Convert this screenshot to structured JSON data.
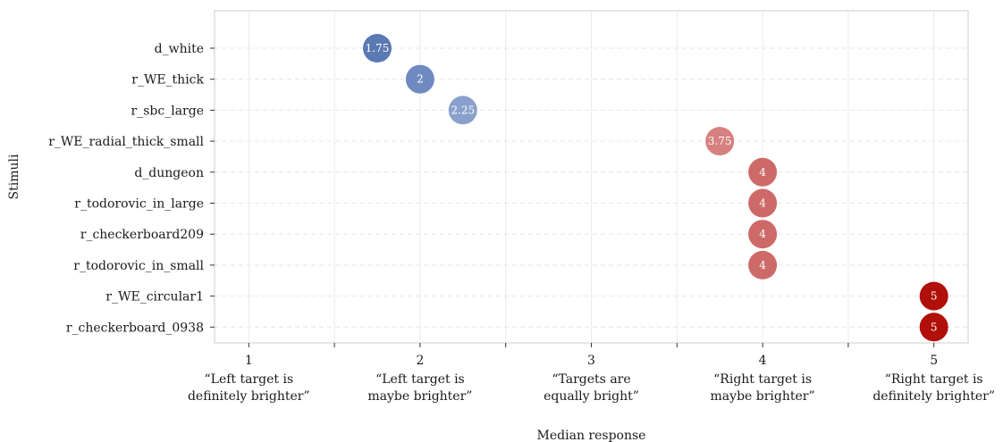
{
  "chart_data": {
    "type": "scatter",
    "xlabel": "Median response",
    "ylabel": "Stimuli",
    "xlim": [
      0.8,
      5.2
    ],
    "x_ticks": [
      {
        "value": 1,
        "number": "1",
        "lines": [
          "“Left target is",
          "definitely brighter”"
        ]
      },
      {
        "value": 2,
        "number": "2",
        "lines": [
          "“Left target is",
          "maybe brighter”"
        ]
      },
      {
        "value": 3,
        "number": "3",
        "lines": [
          "“Targets are",
          "equally bright”"
        ]
      },
      {
        "value": 4,
        "number": "4",
        "lines": [
          "“Right target is",
          "maybe brighter”"
        ]
      },
      {
        "value": 5,
        "number": "5",
        "lines": [
          "“Right target is",
          "definitely brighter”"
        ]
      }
    ],
    "points": [
      {
        "stimulus": "d_white",
        "x": 1.75,
        "label": "1.75",
        "color": "#5b7ab3"
      },
      {
        "stimulus": "r_WE_thick",
        "x": 2,
        "label": "2",
        "color": "#6f8ac0"
      },
      {
        "stimulus": "r_sbc_large",
        "x": 2.25,
        "label": "2.25",
        "color": "#8aa0cc"
      },
      {
        "stimulus": "r_WE_radial_thick_small",
        "x": 3.75,
        "label": "3.75",
        "color": "#d6817f"
      },
      {
        "stimulus": "d_dungeon",
        "x": 4,
        "label": "4",
        "color": "#cd6a68"
      },
      {
        "stimulus": "r_todorovic_in_large",
        "x": 4,
        "label": "4",
        "color": "#cd6a68"
      },
      {
        "stimulus": "r_checkerboard209",
        "x": 4,
        "label": "4",
        "color": "#cd6a68"
      },
      {
        "stimulus": "r_todorovic_in_small",
        "x": 4,
        "label": "4",
        "color": "#cd6a68"
      },
      {
        "stimulus": "r_WE_circular1",
        "x": 5,
        "label": "5",
        "color": "#b00f0a"
      },
      {
        "stimulus": "r_checkerboard_0938",
        "x": 5,
        "label": "5",
        "color": "#b00f0a"
      }
    ],
    "grid": true,
    "legend": "none"
  }
}
